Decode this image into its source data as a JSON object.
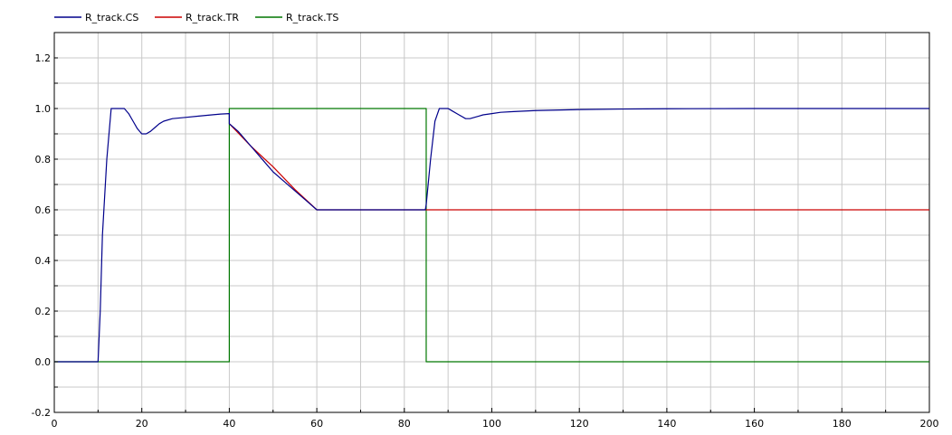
{
  "chart_data": {
    "type": "line",
    "title": "",
    "xlabel": "",
    "ylabel": "",
    "xlim": [
      0,
      200
    ],
    "ylim": [
      -0.2,
      1.3
    ],
    "grid": true,
    "legend_position": "top-left",
    "x_ticks": [
      0,
      20,
      40,
      60,
      80,
      100,
      120,
      140,
      160,
      180,
      200
    ],
    "x_tick_labels": [
      "0",
      "20",
      "40",
      "60",
      "80",
      "100",
      "120",
      "140",
      "160",
      "180",
      "200"
    ],
    "y_ticks": [
      -0.2,
      0.0,
      0.2,
      0.4,
      0.6,
      0.8,
      1.0,
      1.2
    ],
    "y_tick_labels": [
      "-0.2",
      "0.0",
      "0.2",
      "0.4",
      "0.6",
      "0.8",
      "1.0",
      "1.2"
    ],
    "series": [
      {
        "name": "R_track.CS",
        "color": "#00008b",
        "x": [
          0,
          10,
          10.5,
          11,
          12,
          13,
          14,
          15,
          16,
          17,
          18,
          19,
          20,
          21,
          22,
          23,
          24,
          25,
          27,
          30,
          33,
          36,
          38,
          40,
          40,
          42,
          44,
          46,
          48,
          50,
          52,
          54,
          56,
          58,
          60,
          62,
          65,
          70,
          75,
          80,
          84.8,
          85,
          86,
          87,
          88,
          89,
          90,
          91,
          92,
          93,
          94,
          95,
          96,
          97,
          98,
          100,
          102,
          105,
          110,
          120,
          130,
          140,
          160,
          180,
          200
        ],
        "y": [
          0,
          0,
          0.2,
          0.5,
          0.8,
          1.0,
          1.0,
          1.0,
          1.0,
          0.98,
          0.95,
          0.92,
          0.9,
          0.9,
          0.91,
          0.925,
          0.94,
          0.95,
          0.96,
          0.965,
          0.97,
          0.975,
          0.978,
          0.98,
          0.94,
          0.91,
          0.87,
          0.83,
          0.79,
          0.75,
          0.72,
          0.69,
          0.66,
          0.63,
          0.6,
          0.6,
          0.6,
          0.6,
          0.6,
          0.6,
          0.6,
          0.62,
          0.8,
          0.95,
          1.0,
          1.0,
          1.0,
          0.99,
          0.98,
          0.97,
          0.96,
          0.96,
          0.965,
          0.97,
          0.975,
          0.98,
          0.985,
          0.988,
          0.992,
          0.996,
          0.998,
          0.999,
          1.0,
          1.0,
          1.0
        ]
      },
      {
        "name": "R_track.TR",
        "color": "#cc0000",
        "x": [
          40,
          45,
          50,
          55,
          60,
          70,
          80,
          84.8,
          90,
          100,
          120,
          140,
          160,
          180,
          200
        ],
        "y": [
          0.94,
          0.85,
          0.77,
          0.68,
          0.6,
          0.6,
          0.6,
          0.6,
          0.6,
          0.6,
          0.6,
          0.6,
          0.6,
          0.6,
          0.6
        ]
      },
      {
        "name": "R_track.TS",
        "color": "#007700",
        "x": [
          0,
          40,
          40,
          85,
          85,
          200
        ],
        "y": [
          0,
          0,
          1,
          1,
          0,
          0
        ]
      }
    ]
  }
}
